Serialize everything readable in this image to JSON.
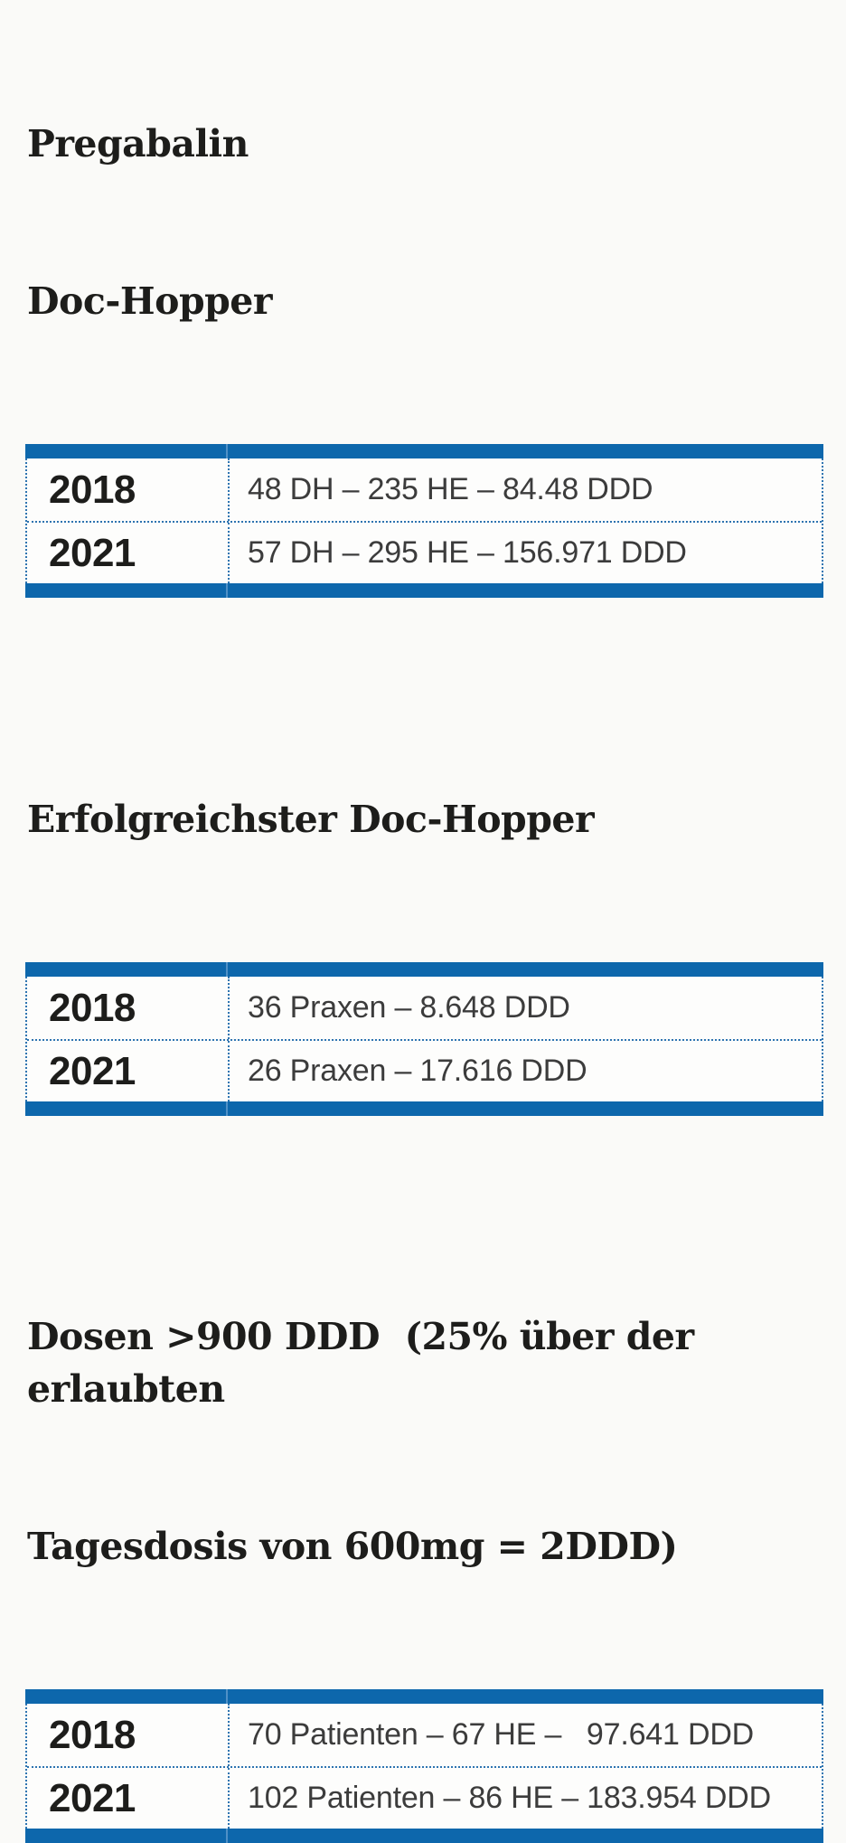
{
  "page": {
    "accent_blue": "#0d67ac",
    "divider_dot_blue": "#2e74b0",
    "heading_color": "#1d1d1b",
    "value_color": "#3c3c3c",
    "background": "#fafaf8"
  },
  "sections": [
    {
      "title_lines": [
        "Pregabalin",
        "Doc-Hopper"
      ],
      "rows": [
        {
          "year": "2018",
          "value": "48 DH – 235 HE – 84.48 DDD"
        },
        {
          "year": "2021",
          "value": "57 DH – 295 HE – 156.971 DDD"
        }
      ]
    },
    {
      "title_lines": [
        "Erfolgreichster Doc-Hopper"
      ],
      "rows": [
        {
          "year": "2018",
          "value": "36 Praxen – 8.648 DDD"
        },
        {
          "year": "2021",
          "value": "26 Praxen – 17.616 DDD"
        }
      ]
    },
    {
      "title_lines": [
        "Dosen >900 DDD  (25% über der erlaubten",
        "Tagesdosis von 600mg = 2DDD)"
      ],
      "rows": [
        {
          "year": "2018",
          "value": "70 Patienten – 67 HE –   97.641 DDD"
        },
        {
          "year": "2021",
          "value": "102 Patienten – 86 HE – 183.954 DDD"
        }
      ]
    }
  ]
}
